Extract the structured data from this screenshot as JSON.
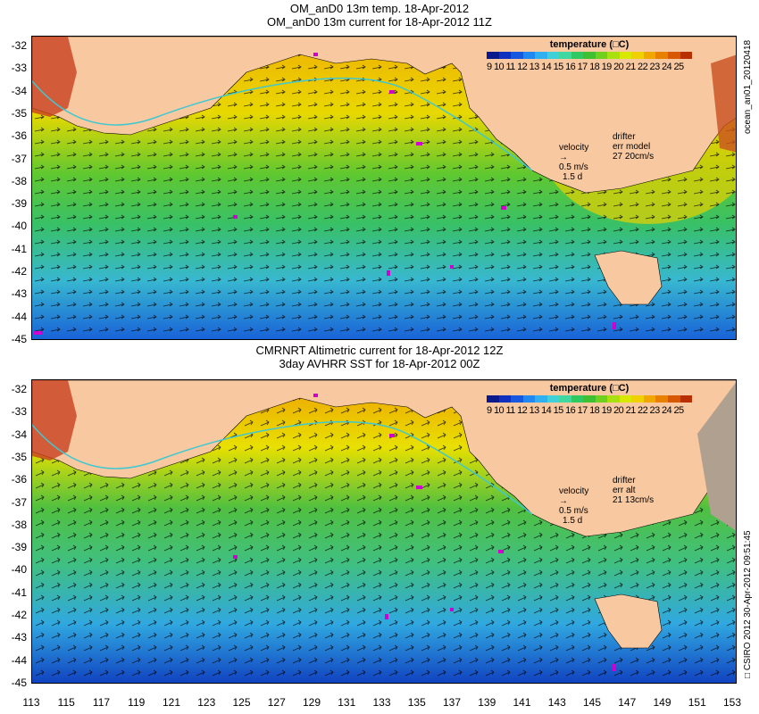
{
  "top": {
    "title1": "OM_anD0 13m temp. 18-Apr-2012",
    "title2": "OM_anD0 13m current for 18-Apr-2012 11Z",
    "legend_title": "temperature (□C)",
    "side_text": "ocean_an01_20120418",
    "velocity": {
      "label": "velocity",
      "value": "0.5 m/s",
      "sub": "1.5 d"
    },
    "drifter": {
      "label": "drifter",
      "line2": "err model",
      "line3": "27 20cm/s"
    }
  },
  "bottom": {
    "title1": "CMRNRT Altimetric current for 18-Apr-2012 12Z",
    "title2": "3day AVHRR SST for 18-Apr-2012 00Z",
    "legend_title": "temperature (□C)",
    "side_text": "□ CSIRO 2012   30-Apr-2012 09:51:45",
    "velocity": {
      "label": "velocity",
      "value": "0.5 m/s",
      "sub": "1.5 d"
    },
    "drifter": {
      "label": "drifter",
      "line2": "err alt",
      "line3": "21 13cm/s"
    }
  },
  "colorbar": {
    "ticks": "9 10 11 12 13 14 15 16 17 18 19 20 21 22 23 24 25",
    "colors": [
      "#0a1a8c",
      "#1030c0",
      "#1858e0",
      "#2088f0",
      "#30b0f0",
      "#40d0d8",
      "#40d8a0",
      "#30c860",
      "#40c030",
      "#70d020",
      "#a8e010",
      "#d8e800",
      "#f0d000",
      "#f0a800",
      "#e88000",
      "#d85800",
      "#b83000"
    ]
  },
  "lat_labels": [
    "-32",
    "-33",
    "-34",
    "-35",
    "-36",
    "-37",
    "-38",
    "-39",
    "-40",
    "-41",
    "-42",
    "-43",
    "-44",
    "-45"
  ],
  "lon_labels": [
    "113",
    "115",
    "117",
    "119",
    "121",
    "123",
    "125",
    "127",
    "129",
    "131",
    "133",
    "135",
    "137",
    "139",
    "141",
    "143",
    "145",
    "147",
    "149",
    "151",
    "153"
  ]
}
